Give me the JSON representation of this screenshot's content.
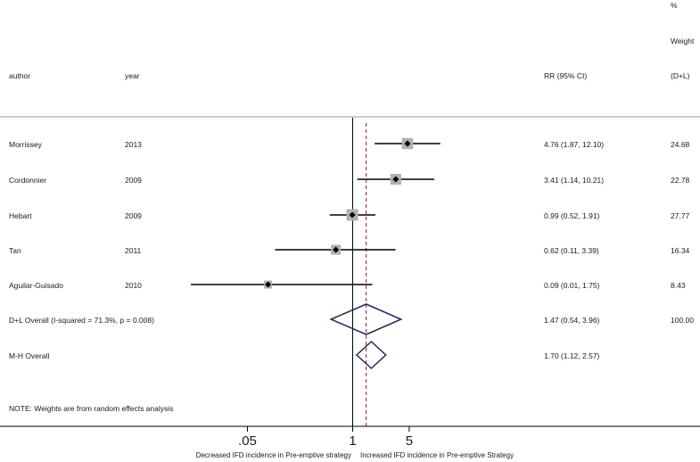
{
  "header": {
    "col_author": "author",
    "col_year": "year",
    "col_rr": "RR (95% CI)",
    "col_weight_1": "%",
    "col_weight_2": "Weight",
    "col_weight_3": "(D+L)"
  },
  "chart_data": {
    "type": "forest",
    "scale": "log",
    "x_ticks": [
      {
        "value": 0.05,
        "label": ".05"
      },
      {
        "value": 1,
        "label": "1"
      },
      {
        "value": 5,
        "label": "5"
      }
    ],
    "null_line": 1,
    "overall_line": 1.47,
    "xlabel_left": "Decreased IFD incidence in Pre-emptive strategy",
    "xlabel_right": "Increased IFD incidence in Pre-emptive Strategy",
    "studies": [
      {
        "author": "Morrissey",
        "year": "2013",
        "rr": 4.76,
        "lo": 1.87,
        "hi": 12.1,
        "ci_text": "4.76 (1.87, 12.10)",
        "weight": 24.68,
        "weight_text": "24.68"
      },
      {
        "author": "Cordonnier",
        "year": "2009",
        "rr": 3.41,
        "lo": 1.14,
        "hi": 10.21,
        "ci_text": "3.41 (1.14, 10.21)",
        "weight": 22.78,
        "weight_text": "22.78"
      },
      {
        "author": "Hebart",
        "year": "2009",
        "rr": 0.99,
        "lo": 0.52,
        "hi": 1.91,
        "ci_text": "0.99 (0.52, 1.91)",
        "weight": 27.77,
        "weight_text": "27.77"
      },
      {
        "author": "Tan",
        "year": "2011",
        "rr": 0.62,
        "lo": 0.11,
        "hi": 3.39,
        "ci_text": "0.62 (0.11, 3.39)",
        "weight": 16.34,
        "weight_text": "16.34"
      },
      {
        "author": "Aguilar-Guisado",
        "year": "2010",
        "rr": 0.09,
        "lo": 0.01,
        "hi": 1.75,
        "ci_text": "0.09 (0.01, 1.75)",
        "weight": 8.43,
        "weight_text": "8.43"
      }
    ],
    "overall": [
      {
        "label": "D+L Overall  (I-squared = 71.3%, p = 0.008)",
        "rr": 1.47,
        "lo": 0.54,
        "hi": 3.96,
        "ci_text": "1.47 (0.54, 3.96)",
        "weight_text": "100.00"
      },
      {
        "label": "M-H Overall",
        "rr": 1.7,
        "lo": 1.12,
        "hi": 2.57,
        "ci_text": "1.70 (1.12, 2.57)",
        "weight_text": ""
      }
    ],
    "note": "NOTE: Weights are from random effects analysis",
    "colors": {
      "ci_line": "#000000",
      "box": "#b0b0b0",
      "diamond": "#1f2a5c",
      "overall_line": "#8b1a1a",
      "rule": "#9a9a9a"
    }
  }
}
